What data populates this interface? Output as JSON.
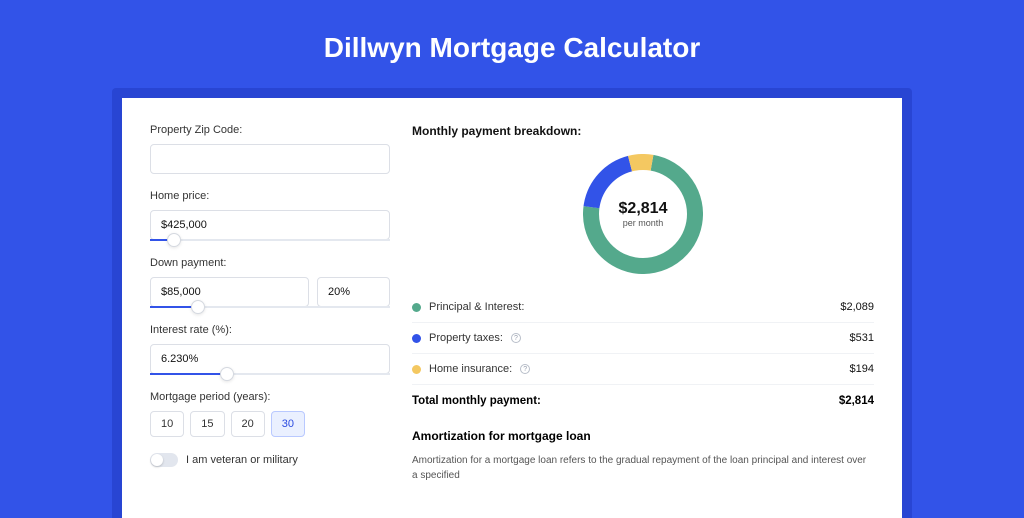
{
  "page": {
    "title": "Dillwyn Mortgage Calculator",
    "background_color": "#3253e8",
    "shell_color": "#2845d3",
    "card_color": "#ffffff"
  },
  "inputs": {
    "zip": {
      "label": "Property Zip Code:",
      "value": ""
    },
    "home_price": {
      "label": "Home price:",
      "value": "$425,000",
      "slider_pct": 10
    },
    "down_payment": {
      "label": "Down payment:",
      "amount": "$85,000",
      "percent": "20%",
      "slider_pct": 20
    },
    "interest_rate": {
      "label": "Interest rate (%):",
      "value": "6.230%",
      "slider_pct": 32
    },
    "mortgage_period": {
      "label": "Mortgage period (years):",
      "options": [
        "10",
        "15",
        "20",
        "30"
      ],
      "selected": "30"
    },
    "veteran": {
      "label": "I am veteran or military",
      "checked": false
    }
  },
  "breakdown": {
    "title": "Monthly payment breakdown:",
    "donut": {
      "type": "donut",
      "center_value": "$2,814",
      "center_sub": "per month",
      "segments": [
        {
          "label": "Principal & Interest:",
          "value": "$2,089",
          "numeric": 2089,
          "color": "#54a98c"
        },
        {
          "label": "Property taxes:",
          "value": "$531",
          "numeric": 531,
          "color": "#3253e8",
          "info": true
        },
        {
          "label": "Home insurance:",
          "value": "$194",
          "numeric": 194,
          "color": "#f4c861",
          "info": true
        }
      ],
      "ring_thickness": 16,
      "outer_radius": 60,
      "background_color": "#ffffff"
    },
    "total": {
      "label": "Total monthly payment:",
      "value": "$2,814"
    }
  },
  "amortization": {
    "title": "Amortization for mortgage loan",
    "text": "Amortization for a mortgage loan refers to the gradual repayment of the loan principal and interest over a specified"
  }
}
